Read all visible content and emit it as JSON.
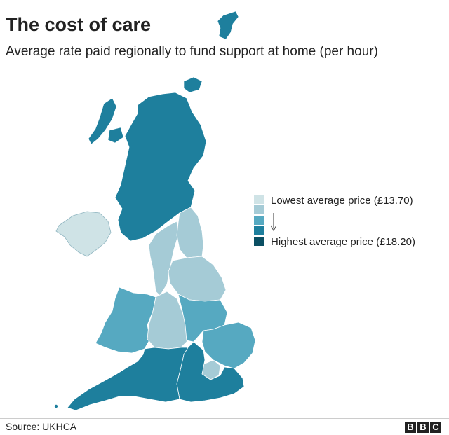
{
  "title": "The cost of care",
  "subtitle": "Average rate paid regionally to fund support at home (per hour)",
  "legend": {
    "low_label": "Lowest average price (£13.70)",
    "high_label": "Highest average price (£18.20)",
    "scale_colors": [
      "#cfe3e6",
      "#a5cbd6",
      "#56a9c1",
      "#1e7f9d",
      "#0b4f63"
    ]
  },
  "regions": [
    {
      "name": "Northern Ireland",
      "shade": 0
    },
    {
      "name": "Scotland",
      "shade": 3
    },
    {
      "name": "North West England",
      "shade": 1
    },
    {
      "name": "North East England",
      "shade": 1
    },
    {
      "name": "Yorkshire and the Humber",
      "shade": 2
    },
    {
      "name": "Wales",
      "shade": 3
    },
    {
      "name": "West Midlands",
      "shade": 2
    },
    {
      "name": "East Midlands",
      "shade": 3
    },
    {
      "name": "East of England",
      "shade": 3
    },
    {
      "name": "London",
      "shade": 2
    },
    {
      "name": "South West England",
      "shade": 4
    },
    {
      "name": "South East England",
      "shade": 4
    }
  ],
  "footer": {
    "source": "Source: UKHCA",
    "logo_letters": [
      "B",
      "B",
      "C"
    ]
  }
}
